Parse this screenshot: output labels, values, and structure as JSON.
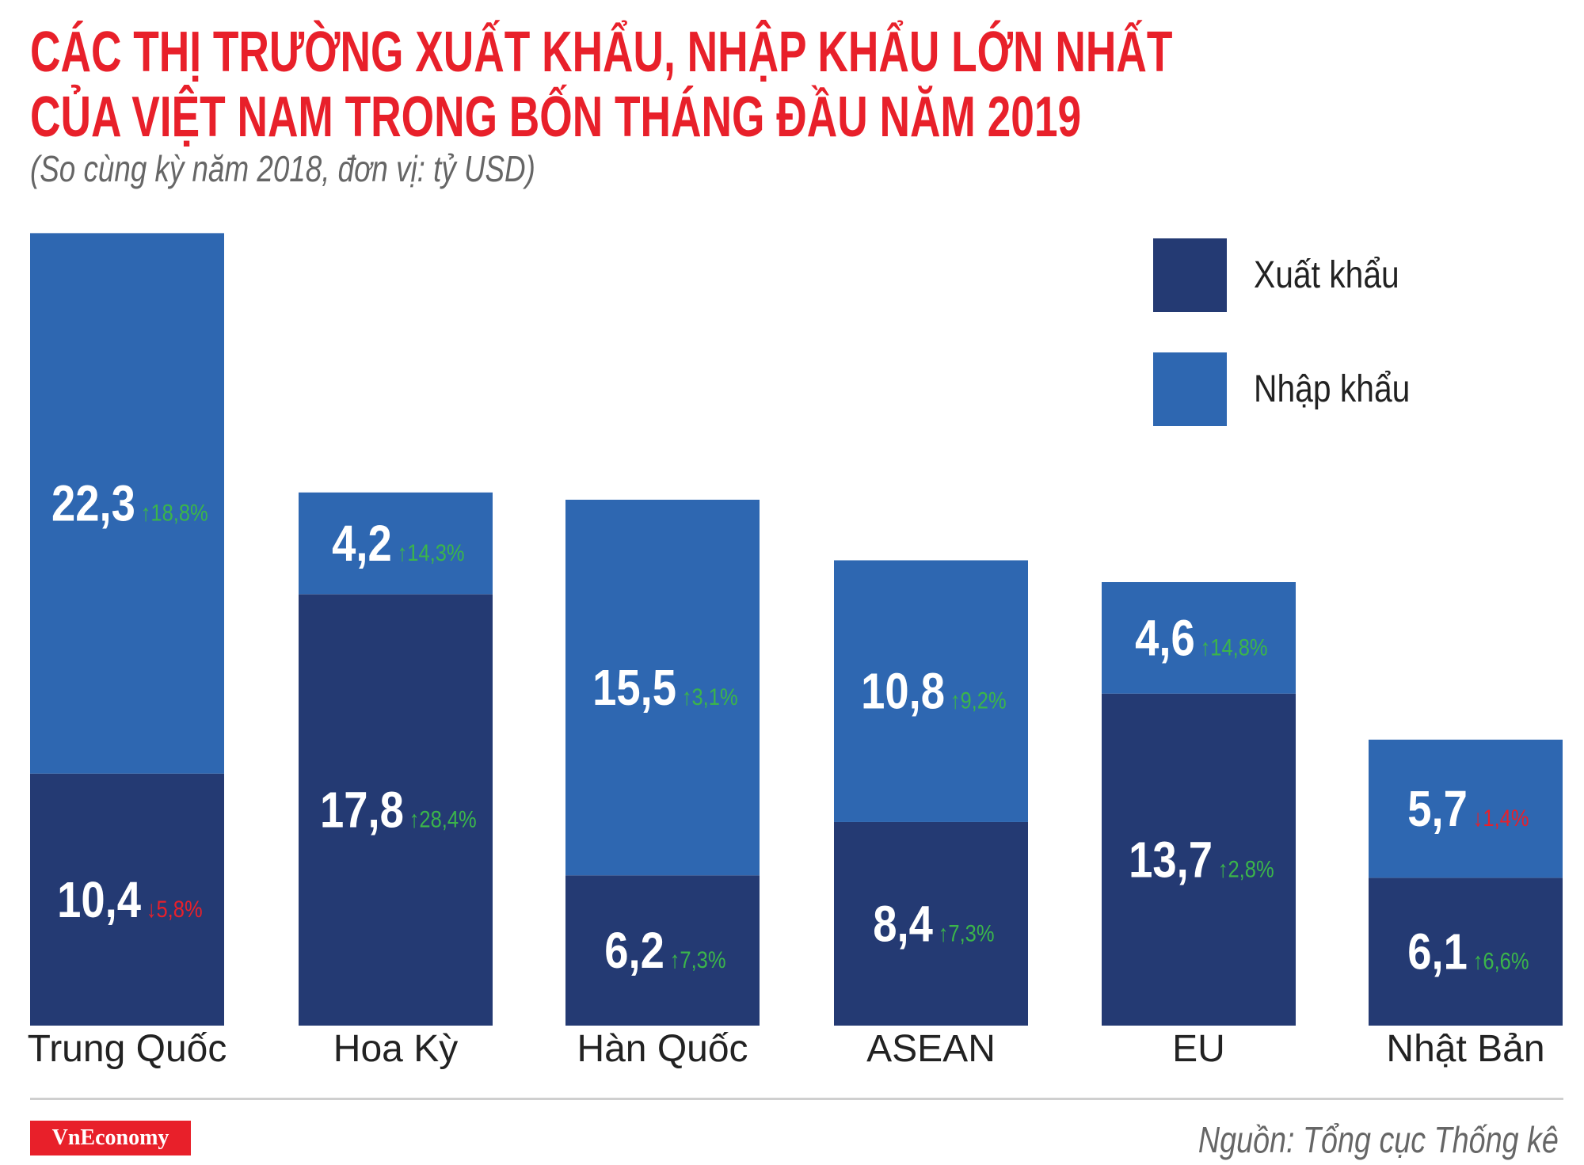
{
  "header": {
    "title_line1": "CÁC THỊ TRƯỜNG XUẤT KHẨU, NHẬP KHẨU LỚN NHẤT",
    "title_line2": "CỦA VIỆT NAM TRONG BỐN THÁNG ĐẦU NĂM 2019",
    "subtitle": "(So cùng kỳ năm 2018, đơn vị: tỷ USD)"
  },
  "legend": {
    "placement": "top-right",
    "items": [
      {
        "label": "Xuất khẩu",
        "color": "#243a73"
      },
      {
        "label": "Nhập khẩu",
        "color": "#2e67b1"
      }
    ]
  },
  "chart_data": {
    "type": "bar",
    "stacked": true,
    "title": "CÁC THỊ TRƯỜNG XUẤT KHẨU, NHẬP KHẨU LỚN NHẤT CỦA VIỆT NAM TRONG BỐN THÁNG ĐẦU NĂM 2019",
    "subtitle": "(So cùng kỳ năm 2018, đơn vị: tỷ USD)",
    "categories": [
      "Trung Quốc",
      "Hoa Kỳ",
      "Hàn Quốc",
      "ASEAN",
      "EU",
      "Nhật Bản"
    ],
    "series": [
      {
        "name": "Xuất khẩu",
        "color": "#243a73",
        "values": [
          10.4,
          17.8,
          6.2,
          8.4,
          13.7,
          6.1
        ],
        "labels": [
          "10,4",
          "17,8",
          "6,2",
          "8,4",
          "13,7",
          "6,1"
        ],
        "changes": [
          "5,8%",
          "28,4%",
          "7,3%",
          "7,3%",
          "2,8%",
          "6,6%"
        ],
        "directions": [
          "down",
          "up",
          "up",
          "up",
          "up",
          "up"
        ]
      },
      {
        "name": "Nhập khẩu",
        "color": "#2e67b1",
        "values": [
          22.3,
          4.2,
          15.5,
          10.8,
          4.6,
          5.7
        ],
        "labels": [
          "22,3",
          "4,2",
          "15,5",
          "10,8",
          "4,6",
          "5,7"
        ],
        "changes": [
          "18,8%",
          "14,3%",
          "3,1%",
          "9,2%",
          "14,8%",
          "1,4%"
        ],
        "directions": [
          "up",
          "up",
          "up",
          "up",
          "up",
          "down"
        ]
      }
    ],
    "ylim": [
      0,
      32.7
    ],
    "grid": false,
    "colors": {
      "up": "#3bb54a",
      "down": "#e8202a"
    }
  },
  "footer": {
    "logo": "VnEconomy",
    "source": "Nguồn: Tổng cục Thống kê"
  }
}
